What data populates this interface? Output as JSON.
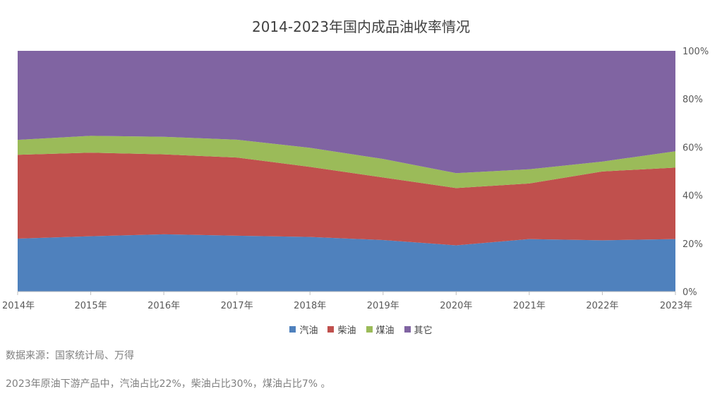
{
  "chart_data": {
    "type": "area",
    "stacked": true,
    "title": "2014-2023年国内成品油收率情况",
    "categories": [
      "2014年",
      "2015年",
      "2016年",
      "2017年",
      "2018年",
      "2019年",
      "2020年",
      "2021年",
      "2022年",
      "2023年"
    ],
    "series": [
      {
        "name": "汽油",
        "color": "#4f81bd",
        "values": [
          22,
          23,
          23.8,
          23.2,
          22.7,
          21.4,
          19.2,
          21.8,
          21.3,
          21.8
        ]
      },
      {
        "name": "柴油",
        "color": "#c0504d",
        "values": [
          34.8,
          34.7,
          33.2,
          32.5,
          29.1,
          26,
          23.8,
          23.1,
          28.6,
          29.7
        ]
      },
      {
        "name": "煤油",
        "color": "#9bbb59",
        "values": [
          6.2,
          7,
          7.3,
          7.4,
          7.9,
          7.7,
          6.2,
          5.9,
          4.1,
          6.8
        ]
      },
      {
        "name": "其它",
        "color": "#8064a2",
        "values": [
          37,
          35.3,
          35.7,
          36.9,
          40.3,
          44.9,
          50.8,
          49.2,
          46,
          41.7
        ]
      }
    ],
    "y_axis": {
      "ticks": [
        "0%",
        "20%",
        "40%",
        "60%",
        "80%",
        "100%"
      ],
      "min": 0,
      "max": 100,
      "position": "right"
    },
    "legend": {
      "position": "bottom"
    },
    "grid": false
  },
  "notes": {
    "source": "数据来源：国家统计局、万得",
    "summary": "2023年原油下游产品中，汽油占比22%，柴油占比30%，煤油占比7% 。"
  }
}
